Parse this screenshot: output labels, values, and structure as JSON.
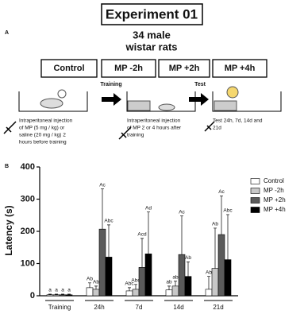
{
  "panel_a": {
    "letter": "A",
    "title": "Experiment 01",
    "subtitle": [
      "34 male",
      "wistar rats"
    ],
    "groups": [
      "Control",
      "MP -2h",
      "MP +2h",
      "MP +4h"
    ],
    "training_label": "Training",
    "test_label": "Test",
    "step1": [
      "Intraperitoneal injection",
      "of MP (5 mg / kg) or",
      "saline (20 mg / kg) 2",
      "hours before training"
    ],
    "step2": [
      "Intraperitoneal injection",
      "of MP 2 or 4 hours after",
      "training"
    ],
    "step3": [
      "Test 24h, 7d, 14d and",
      "21d"
    ]
  },
  "chart_data": {
    "type": "bar",
    "letter": "B",
    "ylabel": "Latency (s)",
    "categories": [
      "Training",
      "24h",
      "7d",
      "14d",
      "21d"
    ],
    "ylim": [
      0,
      400
    ],
    "yticks": [
      0,
      100,
      200,
      300,
      400
    ],
    "series": [
      {
        "name": "Control",
        "color": "#ffffff",
        "values": [
          3,
          25,
          15,
          18,
          20
        ],
        "errors": [
          2,
          15,
          10,
          12,
          40
        ],
        "significance": [
          "a",
          "Ab",
          "Abc",
          "ab",
          "Ab"
        ]
      },
      {
        "name": "MP -2h",
        "color": "#c8c8c8",
        "values": [
          3,
          20,
          20,
          30,
          85
        ],
        "errors": [
          2,
          10,
          15,
          15,
          125
        ],
        "significance": [
          "a",
          "Ab",
          "Abc",
          "ab",
          "Ab"
        ]
      },
      {
        "name": "MP +2h",
        "color": "#5a5a5a",
        "values": [
          3,
          207,
          88,
          128,
          190
        ],
        "errors": [
          2,
          125,
          90,
          120,
          120
        ],
        "significance": [
          "a",
          "Ac",
          "Acd",
          "Ac",
          "Ac"
        ]
      },
      {
        "name": "MP +4h",
        "color": "#000000",
        "values": [
          3,
          120,
          130,
          60,
          112
        ],
        "errors": [
          2,
          100,
          130,
          45,
          140
        ],
        "significance": [
          "a",
          "Abc",
          "Ad",
          "Ab",
          "Abc"
        ]
      }
    ]
  }
}
